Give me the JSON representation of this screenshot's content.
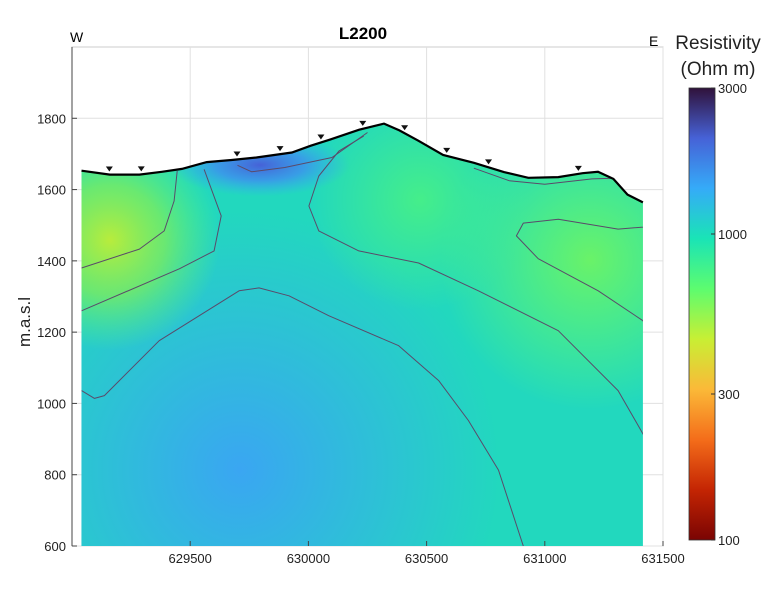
{
  "chart_data": {
    "type": "heatmap",
    "title": "L2200",
    "xlabel": "",
    "ylabel": "m.a.s.l",
    "direction_labels": {
      "left": "W",
      "right": "E"
    },
    "xlim": [
      629000,
      631500
    ],
    "ylim": [
      600,
      2000
    ],
    "xticks": [
      629500,
      630000,
      630500,
      631000,
      631500
    ],
    "yticks": [
      600,
      800,
      1000,
      1200,
      1400,
      1600,
      1800
    ],
    "grid": true,
    "colorbar": {
      "title": [
        "Resistivity",
        "(Ohm m)"
      ],
      "scale": "log",
      "range": [
        100,
        3000
      ],
      "ticks": [
        100,
        300,
        1000,
        3000
      ],
      "colormap": [
        "#7a0403",
        "#c42503",
        "#f46d1a",
        "#fbb938",
        "#c8ef34",
        "#5dfc6f",
        "#1ae4b6",
        "#35abf8",
        "#4662d7",
        "#30123b"
      ]
    },
    "topography": [
      [
        629040,
        1653
      ],
      [
        629160,
        1642
      ],
      [
        629285,
        1642
      ],
      [
        629380,
        1650
      ],
      [
        629465,
        1658
      ],
      [
        629570,
        1677
      ],
      [
        629675,
        1683
      ],
      [
        629780,
        1690
      ],
      [
        629930,
        1704
      ],
      [
        630010,
        1723
      ],
      [
        630090,
        1740
      ],
      [
        630215,
        1768
      ],
      [
        630320,
        1785
      ],
      [
        630385,
        1766
      ],
      [
        630465,
        1737
      ],
      [
        630570,
        1697
      ],
      [
        630700,
        1675
      ],
      [
        630827,
        1649
      ],
      [
        630930,
        1633
      ],
      [
        631057,
        1635
      ],
      [
        631160,
        1646
      ],
      [
        631225,
        1650
      ],
      [
        631290,
        1630
      ],
      [
        631350,
        1586
      ],
      [
        631415,
        1564
      ]
    ],
    "electrodes_x": [
      629158,
      629293,
      629698,
      629880,
      630053,
      630230,
      630407,
      630585,
      630762,
      631142
    ],
    "contours": [
      [
        [
          629040,
          1380
        ],
        [
          629285,
          1433
        ],
        [
          629390,
          1484
        ],
        [
          629432,
          1568
        ],
        [
          629445,
          1652
        ]
      ],
      [
        [
          629040,
          1260
        ],
        [
          629455,
          1378
        ],
        [
          629601,
          1428
        ],
        [
          629631,
          1526
        ],
        [
          629559,
          1657
        ]
      ],
      [
        [
          629040,
          1036
        ],
        [
          629095,
          1014
        ],
        [
          629137,
          1022
        ],
        [
          629369,
          1176
        ],
        [
          629707,
          1316
        ],
        [
          629791,
          1324
        ],
        [
          629918,
          1302
        ],
        [
          630086,
          1246
        ],
        [
          630382,
          1162
        ],
        [
          630551,
          1064
        ],
        [
          630677,
          952
        ],
        [
          630804,
          813
        ],
        [
          630909,
          600
        ]
      ],
      [
        [
          630234,
          1750
        ],
        [
          630129,
          1708
        ],
        [
          630044,
          1638
        ],
        [
          630002,
          1554
        ],
        [
          630044,
          1484
        ],
        [
          630213,
          1428
        ],
        [
          630466,
          1394
        ],
        [
          630719,
          1316
        ],
        [
          631057,
          1204
        ],
        [
          631310,
          1036
        ],
        [
          631479,
          841
        ]
      ],
      [
        [
          631479,
          1498
        ],
        [
          631310,
          1489
        ],
        [
          631057,
          1517
        ],
        [
          630909,
          1506
        ],
        [
          630880,
          1470
        ],
        [
          630972,
          1406
        ],
        [
          631226,
          1316
        ],
        [
          631415,
          1232
        ],
        [
          631479,
          1162
        ]
      ],
      [
        [
          629700,
          1668
        ],
        [
          629760,
          1650
        ],
        [
          629900,
          1662
        ],
        [
          630100,
          1690
        ],
        [
          630250,
          1760
        ]
      ],
      [
        [
          630700,
          1660
        ],
        [
          630850,
          1625
        ],
        [
          631000,
          1615
        ],
        [
          631200,
          1630
        ],
        [
          631290,
          1632
        ]
      ]
    ]
  }
}
